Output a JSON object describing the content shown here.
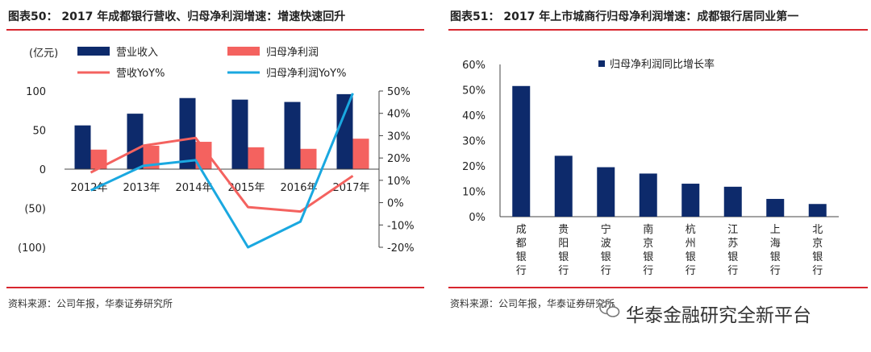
{
  "left_panel": {
    "title": "图表50： 2017 年成都银行营收、归母净利润增速：增速快速回升",
    "unit_label": "(亿元)",
    "source": "资料来源：公司年报，华泰证券研究所"
  },
  "right_panel": {
    "title": "图表51： 2017 年上市城商行归母净利润增速：成都银行居同业第一",
    "source": "资料来源：公司年报，华泰证券研究所"
  },
  "watermark": "华泰金融研究全新平台",
  "colors": {
    "revenue": "#0d2a6b",
    "profit": "#f4625f",
    "revenue_yoy": "#f4625f",
    "profit_yoy": "#1aa8e0",
    "accent_rule": "#d8262e"
  },
  "chart_data": [
    {
      "type": "bar",
      "categories": [
        "2012年",
        "2013年",
        "2014年",
        "2015年",
        "2016年",
        "2017年"
      ],
      "series": [
        {
          "name": "营业收入",
          "kind": "bar",
          "axis": "left",
          "values": [
            56,
            71,
            91,
            89,
            86,
            96
          ]
        },
        {
          "name": "归母净利润",
          "kind": "bar",
          "axis": "left",
          "values": [
            25,
            30,
            35,
            28,
            26,
            39
          ]
        },
        {
          "name": "营收YoY%",
          "kind": "line",
          "axis": "right",
          "values": [
            13.5,
            25.5,
            29,
            -2,
            -4,
            12
          ]
        },
        {
          "name": "归母净利润YoY%",
          "kind": "line",
          "axis": "right",
          "values": [
            5.5,
            16.5,
            19,
            -20,
            -8.5,
            49
          ]
        }
      ],
      "left_ticks": [
        "100",
        "50",
        "0",
        "(50)",
        "(100)"
      ],
      "right_ticks": [
        "50%",
        "40%",
        "30%",
        "20%",
        "10%",
        "0%",
        "-10%",
        "-20%"
      ],
      "ylim_left": [
        -100,
        100
      ],
      "ylim_right": [
        -20,
        50
      ],
      "legend_position": "top"
    },
    {
      "type": "bar",
      "categories": [
        "成都银行",
        "贵阳银行",
        "宁波银行",
        "南京银行",
        "杭州银行",
        "江苏银行",
        "上海银行",
        "北京银行"
      ],
      "series": [
        {
          "name": "归母净利润同比增长率",
          "values": [
            51.5,
            24,
            19.5,
            17,
            13,
            11.8,
            7,
            5
          ]
        }
      ],
      "y_ticks": [
        "60%",
        "50%",
        "40%",
        "30%",
        "20%",
        "10%",
        "0%"
      ],
      "ylim": [
        0,
        60
      ],
      "legend_position": "top"
    }
  ]
}
